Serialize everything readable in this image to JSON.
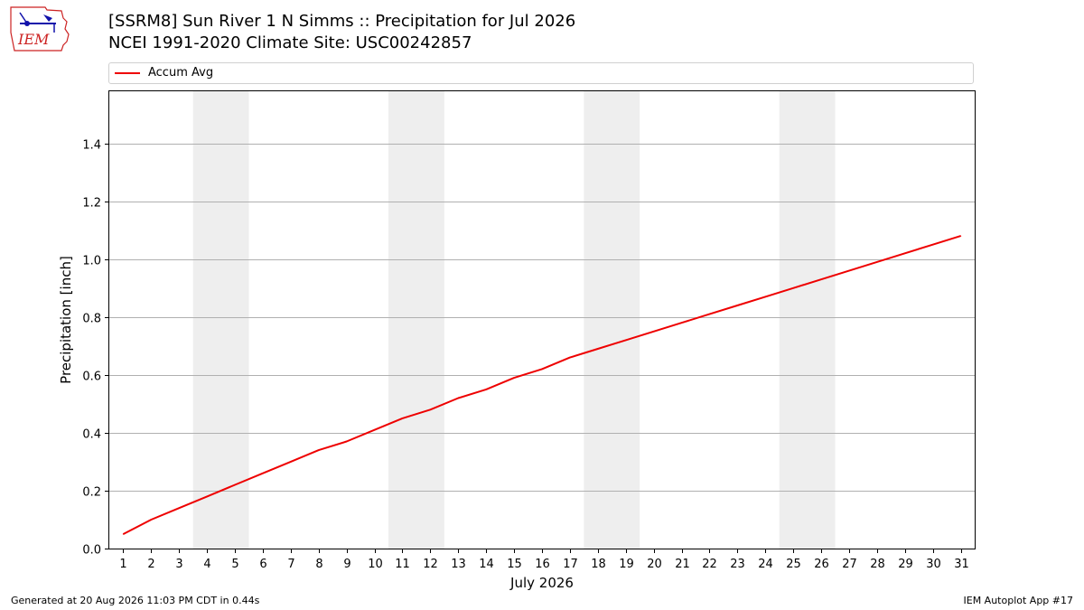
{
  "header": {
    "logo_text": "IEM",
    "title_line1": "[SSRM8] Sun River 1 N Simms :: Precipitation for Jul 2026",
    "title_line2": "NCEI 1991-2020 Climate Site: USC00242857"
  },
  "footer": {
    "generated": "Generated at 20 Aug 2026 11:03 PM CDT in 0.44s",
    "app": "IEM Autoplot App #17"
  },
  "colors": {
    "series": "#ee0000",
    "weekend_shade": "#eeeeee",
    "grid": "#b0b0b0"
  },
  "chart_data": {
    "type": "line",
    "xlabel": "July 2026",
    "ylabel": "Precipitation [inch]",
    "ylim": [
      0,
      1.58
    ],
    "xlim": [
      0.5,
      31.5
    ],
    "yticks": [
      0.0,
      0.2,
      0.4,
      0.6,
      0.8,
      1.0,
      1.2,
      1.4
    ],
    "ytick_labels": [
      "0.0",
      "0.2",
      "0.4",
      "0.6",
      "0.8",
      "1.0",
      "1.2",
      "1.4"
    ],
    "x": [
      1,
      2,
      3,
      4,
      5,
      6,
      7,
      8,
      9,
      10,
      11,
      12,
      13,
      14,
      15,
      16,
      17,
      18,
      19,
      20,
      21,
      22,
      23,
      24,
      25,
      26,
      27,
      28,
      29,
      30,
      31
    ],
    "xtick_labels": [
      "1",
      "2",
      "3",
      "4",
      "5",
      "6",
      "7",
      "8",
      "9",
      "10",
      "11",
      "12",
      "13",
      "14",
      "15",
      "16",
      "17",
      "18",
      "19",
      "20",
      "21",
      "22",
      "23",
      "24",
      "25",
      "26",
      "27",
      "28",
      "29",
      "30",
      "31"
    ],
    "shaded_days": [
      [
        4,
        5
      ],
      [
        11,
        12
      ],
      [
        18,
        19
      ],
      [
        25,
        26
      ]
    ],
    "grid": true,
    "legend_position": "top",
    "series": [
      {
        "name": "Accum Avg",
        "values": [
          0.05,
          0.1,
          0.14,
          0.18,
          0.22,
          0.26,
          0.3,
          0.34,
          0.37,
          0.41,
          0.45,
          0.48,
          0.52,
          0.55,
          0.59,
          0.62,
          0.66,
          0.69,
          0.72,
          0.75,
          0.78,
          0.81,
          0.84,
          0.87,
          0.9,
          0.93,
          0.96,
          0.99,
          1.02,
          1.05,
          1.08
        ]
      }
    ]
  }
}
